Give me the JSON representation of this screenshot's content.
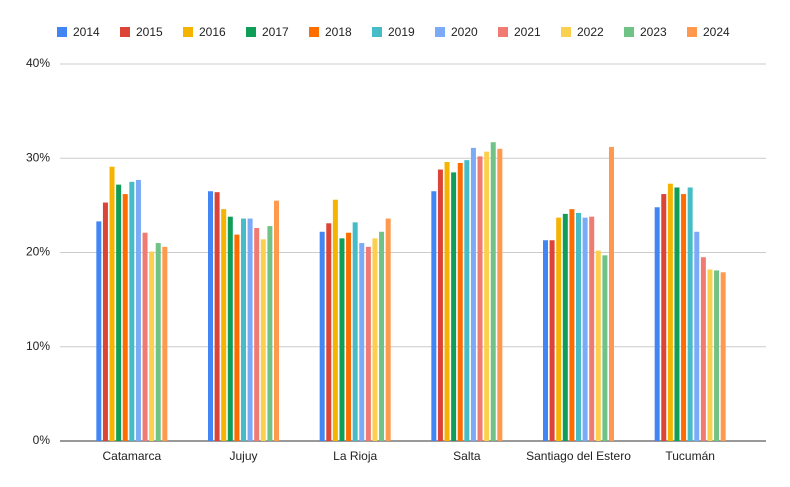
{
  "chart_data": {
    "type": "bar",
    "categories": [
      "Catamarca",
      "Jujuy",
      "La Rioja",
      "Salta",
      "Santiago del Estero",
      "Tucumán"
    ],
    "series": [
      {
        "name": "2014",
        "color": "#4285f4",
        "values": [
          23.3,
          26.5,
          22.2,
          26.5,
          21.3,
          24.8
        ]
      },
      {
        "name": "2015",
        "color": "#db4437",
        "values": [
          25.3,
          26.4,
          23.1,
          28.8,
          21.3,
          26.2
        ]
      },
      {
        "name": "2016",
        "color": "#f4b400",
        "values": [
          29.1,
          24.6,
          25.6,
          29.6,
          23.7,
          27.3
        ]
      },
      {
        "name": "2017",
        "color": "#0f9d58",
        "values": [
          27.2,
          23.8,
          21.5,
          28.5,
          24.1,
          26.9
        ]
      },
      {
        "name": "2018",
        "color": "#ff6d01",
        "values": [
          26.2,
          21.9,
          22.1,
          29.5,
          24.6,
          26.2
        ]
      },
      {
        "name": "2019",
        "color": "#46bdc6",
        "values": [
          27.5,
          23.6,
          23.2,
          29.8,
          24.2,
          26.9
        ]
      },
      {
        "name": "2020",
        "color": "#7baaf7",
        "values": [
          27.7,
          23.6,
          21.0,
          31.1,
          23.7,
          22.2
        ]
      },
      {
        "name": "2021",
        "color": "#f07b72",
        "values": [
          22.1,
          22.6,
          20.6,
          30.2,
          23.8,
          19.5
        ]
      },
      {
        "name": "2022",
        "color": "#fcd04f",
        "values": [
          20.1,
          21.4,
          21.5,
          30.7,
          20.2,
          18.2
        ]
      },
      {
        "name": "2023",
        "color": "#71c287",
        "values": [
          21.0,
          22.8,
          22.2,
          31.7,
          19.7,
          18.1
        ]
      },
      {
        "name": "2024",
        "color": "#ff994d",
        "values": [
          20.6,
          25.5,
          23.6,
          31.0,
          31.2,
          17.9
        ]
      }
    ],
    "ylim": [
      0,
      40
    ],
    "yticks": [
      {
        "value": 0,
        "label": "0%"
      },
      {
        "value": 10,
        "label": "10%"
      },
      {
        "value": 20,
        "label": "20%"
      },
      {
        "value": 30,
        "label": "30%"
      },
      {
        "value": 40,
        "label": "40%"
      }
    ],
    "grid": true
  }
}
